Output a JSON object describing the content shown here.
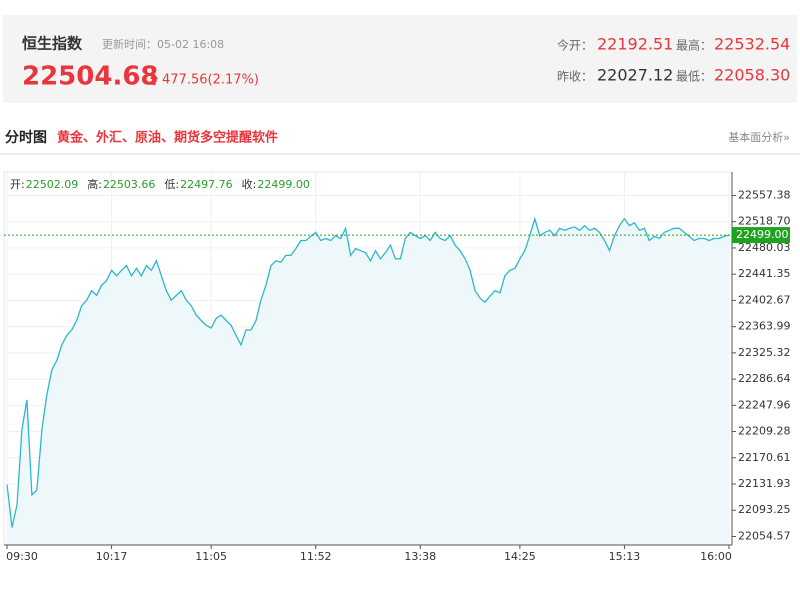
{
  "header": {
    "title": "恒生指数",
    "update_time": "更新时间：05-02 16:08",
    "price": "22504.68",
    "change": "477.56(2.17%)",
    "stats": [
      {
        "label": "今开：",
        "value": "22192.51"
      },
      {
        "label": "最高：",
        "value": "22532.54"
      },
      {
        "label": "昨收：",
        "value": "22027.12"
      },
      {
        "label": "最低：",
        "value": "22058.30"
      }
    ]
  },
  "section": {
    "title": "分时图",
    "promo": "黄金、外汇、原油、期货多空提醒软件",
    "link": "基本面分析»"
  },
  "chart_data": {
    "type": "line",
    "color": "#2cb8cc",
    "fill": "#eef8fb",
    "info": [
      {
        "label": "开:",
        "value": "22502.09"
      },
      {
        "label": "高:",
        "value": "22503.66"
      },
      {
        "label": "低:",
        "value": "22497.76"
      },
      {
        "label": "收:",
        "value": "22499.00"
      }
    ],
    "ref_line": {
      "value": 22499,
      "label": "22499.00"
    },
    "ylim": [
      22042,
      22592
    ],
    "yticks": [
      22054.57,
      22093.25,
      22131.93,
      22170.61,
      22209.28,
      22247.96,
      22286.64,
      22325.32,
      22363.99,
      22402.67,
      22441.35,
      22480.03,
      {
        "value": 22518.7,
        "label": "22518.70"
      },
      22557.38
    ],
    "grid": true,
    "categories": [
      "09:30",
      null,
      null,
      null,
      null,
      null,
      null,
      null,
      null,
      null,
      null,
      null,
      null,
      null,
      null,
      null,
      null,
      null,
      null,
      null,
      null,
      "10:17",
      null,
      null,
      null,
      null,
      null,
      null,
      null,
      null,
      null,
      null,
      null,
      null,
      null,
      null,
      null,
      null,
      null,
      null,
      null,
      "11:05",
      null,
      null,
      null,
      null,
      null,
      null,
      null,
      null,
      null,
      null,
      null,
      null,
      null,
      null,
      null,
      null,
      null,
      null,
      null,
      null,
      "11:52",
      null,
      null,
      null,
      null,
      null,
      null,
      null,
      null,
      null,
      null,
      null,
      null,
      null,
      null,
      null,
      null,
      null,
      null,
      null,
      null,
      "13:38",
      null,
      null,
      null,
      null,
      null,
      null,
      null,
      null,
      null,
      null,
      null,
      null,
      null,
      null,
      null,
      null,
      null,
      null,
      null,
      "14:25",
      null,
      null,
      null,
      null,
      null,
      null,
      null,
      null,
      null,
      null,
      null,
      null,
      null,
      null,
      null,
      null,
      null,
      null,
      null,
      null,
      "15:13",
      null,
      null,
      null,
      null,
      null,
      null,
      null,
      null,
      null,
      null,
      null,
      null,
      null,
      null,
      null,
      null,
      null,
      null,
      null,
      null,
      "16:00"
    ],
    "values": [
      22131,
      22068,
      22101,
      22212,
      22256,
      22116,
      22123,
      22212,
      22263,
      22300,
      22314,
      22337,
      22351,
      22359,
      22373,
      22395,
      22403,
      22417,
      22410,
      22425,
      22432,
      22447,
      22439,
      22447,
      22454,
      22439,
      22450,
      22439,
      22454,
      22447,
      22461,
      22439,
      22417,
      22403,
      22410,
      22417,
      22403,
      22395,
      22381,
      22373,
      22366,
      22362,
      22376,
      22381,
      22373,
      22366,
      22351,
      22337,
      22359,
      22359,
      22373,
      22403,
      22425,
      22454,
      22461,
      22459,
      22469,
      22469,
      22479,
      22491,
      22491,
      22497,
      22503,
      22491,
      22494,
      22491,
      22498,
      22494,
      22509,
      22469,
      22479,
      22476,
      22473,
      22461,
      22476,
      22464,
      22473,
      22484,
      22464,
      22464,
      22494,
      22503,
      22498,
      22494,
      22498,
      22491,
      22503,
      22494,
      22491,
      22498,
      22484,
      22476,
      22464,
      22447,
      22417,
      22406,
      22400,
      22409,
      22417,
      22414,
      22439,
      22447,
      22450,
      22464,
      22476,
      22498,
      22523,
      22498,
      22503,
      22506,
      22498,
      22509,
      22506,
      22509,
      22511,
      22506,
      22513,
      22506,
      22509,
      22503,
      22491,
      22476,
      22498,
      22513,
      22523,
      22513,
      22517,
      22506,
      22509,
      22491,
      22497,
      22494,
      22503,
      22506,
      22509,
      22509,
      22503,
      22497,
      22491,
      22494,
      22494,
      22491,
      22494,
      22494,
      22497,
      22499
    ]
  }
}
